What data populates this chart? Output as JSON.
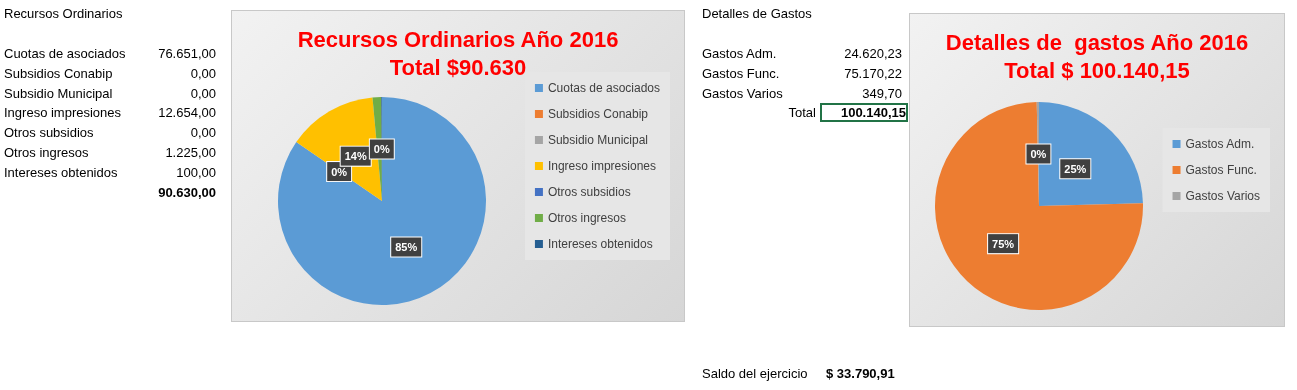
{
  "chart_data": [
    {
      "type": "pie",
      "title": "Recursos Ordinarios Año 2016",
      "subtitle": "Total $90.630",
      "categories": [
        "Cuotas de asociados",
        "Subsidios Conabip",
        "Subsidio Municipal",
        "Ingreso impresiones",
        "Otros subsidios",
        "Otros ingresos",
        "Intereses obtenidos"
      ],
      "values": [
        84.58,
        0,
        0,
        13.96,
        0,
        1.35,
        0.11
      ],
      "colors": [
        "#5b9bd5",
        "#ed7d31",
        "#a5a5a5",
        "#ffc000",
        "#4472c4",
        "#70ad47",
        "#255e91"
      ],
      "value_labels": [
        "85%",
        "0%",
        null,
        "14%",
        null,
        null,
        "0%"
      ],
      "legend": "right",
      "annotations": [
        "Recursos Ordinarios",
        "76.651,00",
        "0,00",
        "0,00",
        "12.654,00",
        "0,00",
        "1.225,00",
        "100,00",
        "90.630,00"
      ]
    },
    {
      "type": "pie",
      "title": "Detalles de  gastos Año 2016",
      "subtitle": "Total $ 100.140,15",
      "categories": [
        "Gastos Adm.",
        "Gastos Func.",
        "Gastos Varios"
      ],
      "values": [
        24.59,
        75.06,
        0.35
      ],
      "colors": [
        "#5b9bd5",
        "#ed7d31",
        "#a5a5a5"
      ],
      "value_labels": [
        "25%",
        "75%",
        "0%"
      ],
      "legend": "right",
      "annotations": [
        "Detalles de Gastos",
        "24.620,23",
        "75.170,22",
        "349,70",
        "Total",
        "100.140,15",
        "Saldo del ejercicio",
        "$ 33.790,91"
      ]
    }
  ]
}
